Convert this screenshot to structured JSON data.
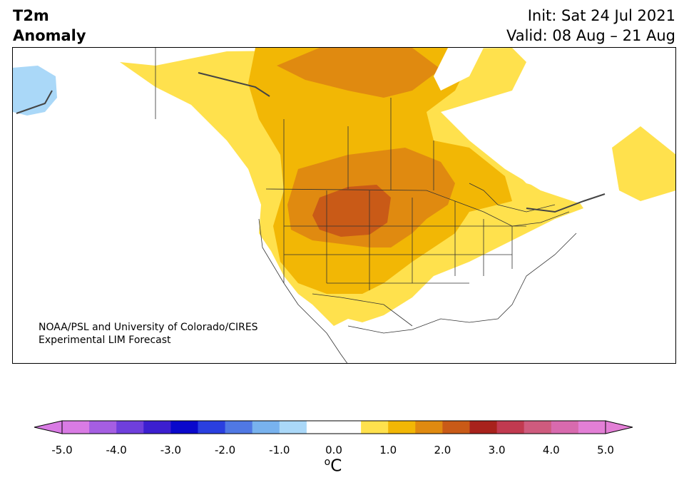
{
  "title": {
    "line1": "T2m",
    "line2": "Anomaly"
  },
  "info": {
    "init": "Init: Sat 24 Jul 2021",
    "valid": "Valid: 08 Aug – 21 Aug"
  },
  "credit": {
    "line1": "NOAA/PSL and University of Colorado/CIRES",
    "line2": "Experimental LIM Forecast"
  },
  "colorbar": {
    "tick_labels": [
      "-5.0",
      "-4.0",
      "-3.0",
      "-2.0",
      "-1.0",
      "0.0",
      "1.0",
      "2.0",
      "3.0",
      "4.0",
      "5.0"
    ],
    "unit_main": "C",
    "unit_sup": "o",
    "colors": [
      "#d97be4",
      "#a55ee2",
      "#6f3fdc",
      "#3c1fd0",
      "#0a08cc",
      "#2a3fe0",
      "#5078e4",
      "#78b2ee",
      "#aad8f8",
      "#ffffff",
      "#ffffff",
      "#ffe14d",
      "#f2b705",
      "#e08a10",
      "#c95a17",
      "#a8221c",
      "#c13a50",
      "#cf5b7e",
      "#d86aae",
      "#e37fd6"
    ],
    "range": [
      -5.0,
      5.0
    ]
  },
  "map": {
    "region": "North America",
    "anomaly_levels": {
      "light_yellow": "#ffe14d",
      "gold": "#f2b705",
      "orange": "#e08a10",
      "dark_orange": "#c95a17",
      "light_blue": "#aad8f8"
    }
  }
}
